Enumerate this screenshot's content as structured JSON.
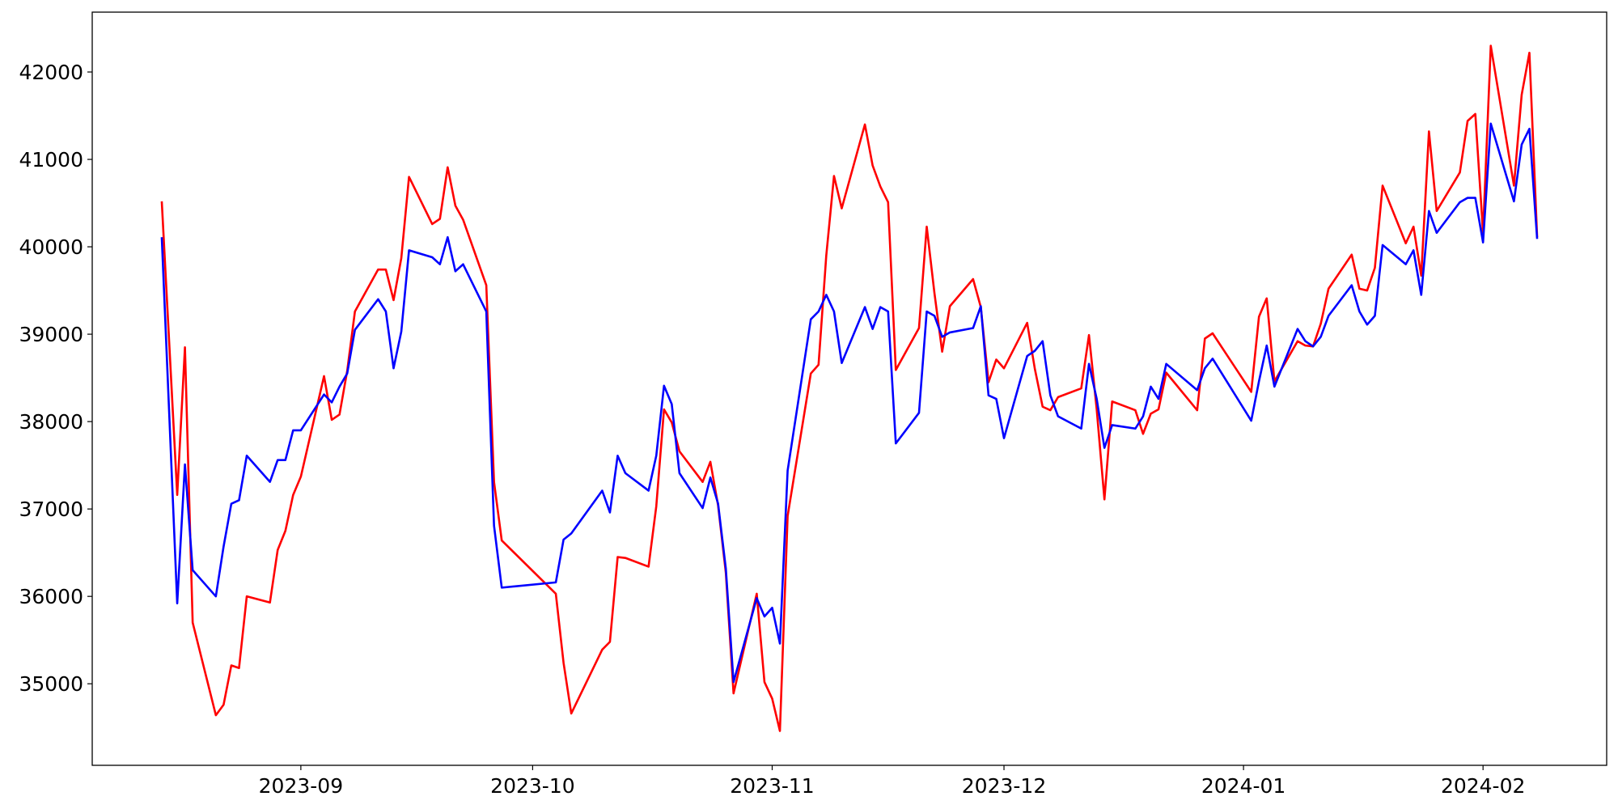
{
  "chart_data": {
    "type": "line",
    "x": [
      "2023-08-14",
      "2023-08-16",
      "2023-08-17",
      "2023-08-18",
      "2023-08-21",
      "2023-08-22",
      "2023-08-23",
      "2023-08-24",
      "2023-08-25",
      "2023-08-28",
      "2023-08-29",
      "2023-08-30",
      "2023-08-31",
      "2023-09-01",
      "2023-09-04",
      "2023-09-05",
      "2023-09-06",
      "2023-09-07",
      "2023-09-08",
      "2023-09-11",
      "2023-09-12",
      "2023-09-13",
      "2023-09-14",
      "2023-09-15",
      "2023-09-18",
      "2023-09-19",
      "2023-09-20",
      "2023-09-21",
      "2023-09-22",
      "2023-09-25",
      "2023-09-26",
      "2023-09-27",
      "2023-10-04",
      "2023-10-05",
      "2023-10-06",
      "2023-10-10",
      "2023-10-11",
      "2023-10-12",
      "2023-10-13",
      "2023-10-16",
      "2023-10-17",
      "2023-10-18",
      "2023-10-19",
      "2023-10-20",
      "2023-10-23",
      "2023-10-24",
      "2023-10-25",
      "2023-10-26",
      "2023-10-27",
      "2023-10-30",
      "2023-10-31",
      "2023-11-01",
      "2023-11-02",
      "2023-11-03",
      "2023-11-06",
      "2023-11-07",
      "2023-11-08",
      "2023-11-09",
      "2023-11-10",
      "2023-11-13",
      "2023-11-14",
      "2023-11-15",
      "2023-11-16",
      "2023-11-17",
      "2023-11-20",
      "2023-11-21",
      "2023-11-22",
      "2023-11-23",
      "2023-11-24",
      "2023-11-27",
      "2023-11-28",
      "2023-11-29",
      "2023-11-30",
      "2023-12-01",
      "2023-12-04",
      "2023-12-05",
      "2023-12-06",
      "2023-12-07",
      "2023-12-08",
      "2023-12-11",
      "2023-12-12",
      "2023-12-13",
      "2023-12-14",
      "2023-12-15",
      "2023-12-18",
      "2023-12-19",
      "2023-12-20",
      "2023-12-21",
      "2023-12-22",
      "2023-12-26",
      "2023-12-27",
      "2023-12-28",
      "2024-01-02",
      "2024-01-03",
      "2024-01-04",
      "2024-01-05",
      "2024-01-08",
      "2024-01-09",
      "2024-01-10",
      "2024-01-11",
      "2024-01-12",
      "2024-01-15",
      "2024-01-16",
      "2024-01-17",
      "2024-01-18",
      "2024-01-19",
      "2024-01-22",
      "2024-01-23",
      "2024-01-24",
      "2024-01-25",
      "2024-01-26",
      "2024-01-29",
      "2024-01-30",
      "2024-01-31",
      "2024-02-01",
      "2024-02-02",
      "2024-02-05",
      "2024-02-06",
      "2024-02-07",
      "2024-02-08"
    ],
    "series": [
      {
        "color": "#ff0000",
        "values": [
          40520,
          37160,
          38850,
          35700,
          34640,
          34760,
          35210,
          35180,
          36000,
          35930,
          36530,
          36750,
          37160,
          37370,
          38520,
          38020,
          38080,
          38580,
          39260,
          39740,
          39740,
          39390,
          39870,
          40800,
          40260,
          40320,
          40910,
          40470,
          40310,
          39560,
          37310,
          36640,
          36030,
          35240,
          34660,
          35390,
          35480,
          36450,
          36440,
          36340,
          37030,
          38140,
          37990,
          37660,
          37310,
          37540,
          37040,
          36270,
          34890,
          36030,
          35020,
          34830,
          34460,
          36920,
          38550,
          38650,
          39900,
          40810,
          40440,
          41400,
          40930,
          40690,
          40510,
          38590,
          39070,
          40230,
          39470,
          38800,
          39320,
          39630,
          39310,
          38450,
          38710,
          38610,
          39130,
          38600,
          38170,
          38130,
          38280,
          38380,
          38990,
          38140,
          37110,
          38230,
          38130,
          37860,
          38090,
          38140,
          38560,
          38130,
          38950,
          39010,
          38340,
          39200,
          39410,
          38460,
          38920,
          38870,
          38860,
          39120,
          39520,
          39910,
          39520,
          39500,
          39760,
          40700,
          40040,
          40230,
          39670,
          41320,
          40410,
          40850,
          41440,
          41520,
          40160,
          42300,
          40700,
          41740,
          42220,
          40110
        ]
      },
      {
        "color": "#0000ff",
        "values": [
          40110,
          35920,
          37510,
          36300,
          36000,
          36570,
          37060,
          37100,
          37610,
          37310,
          37560,
          37560,
          37900,
          37900,
          38310,
          38220,
          38400,
          38550,
          39050,
          39400,
          39260,
          38610,
          39030,
          39960,
          39880,
          39800,
          40110,
          39720,
          39800,
          39260,
          36810,
          36100,
          36160,
          36650,
          36720,
          37210,
          36960,
          37610,
          37410,
          37210,
          37610,
          38410,
          38200,
          37410,
          37010,
          37360,
          37060,
          36320,
          35020,
          35980,
          35770,
          35870,
          35460,
          37440,
          39170,
          39260,
          39450,
          39260,
          38670,
          39310,
          39060,
          39310,
          39260,
          37750,
          38100,
          39260,
          39210,
          38970,
          39020,
          39070,
          39320,
          38300,
          38260,
          37810,
          38750,
          38810,
          38920,
          38300,
          38060,
          37920,
          38660,
          38260,
          37700,
          37960,
          37920,
          38060,
          38400,
          38260,
          38660,
          38360,
          38610,
          38720,
          38010,
          38460,
          38870,
          38400,
          39060,
          38920,
          38860,
          38970,
          39210,
          39560,
          39260,
          39110,
          39210,
          40020,
          39800,
          39960,
          39450,
          40410,
          40160,
          40510,
          40560,
          40560,
          40050,
          41410,
          40520,
          41170,
          41350,
          40090
        ]
      }
    ],
    "xlim": [
      "2023-08-05",
      "2024-02-17"
    ],
    "xticks": [
      {
        "value": "2023-09-01",
        "label": "2023-09"
      },
      {
        "value": "2023-10-01",
        "label": "2023-10"
      },
      {
        "value": "2023-11-01",
        "label": "2023-11"
      },
      {
        "value": "2023-12-01",
        "label": "2023-12"
      },
      {
        "value": "2024-01-01",
        "label": "2024-01"
      },
      {
        "value": "2024-02-01",
        "label": "2024-02"
      }
    ],
    "ylim": [
      34067,
      42685
    ],
    "yticks": [
      35000,
      36000,
      37000,
      38000,
      39000,
      40000,
      41000,
      42000
    ],
    "grid": false
  }
}
